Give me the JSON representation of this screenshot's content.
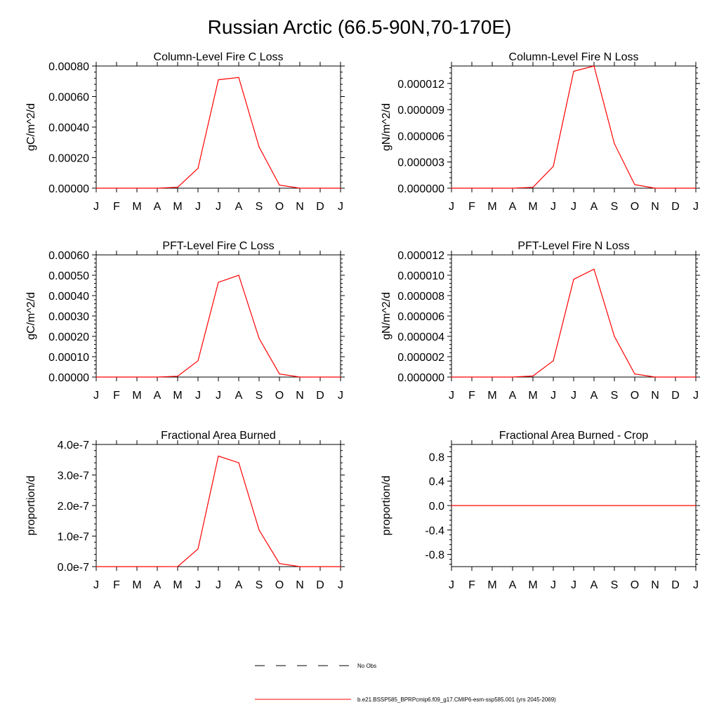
{
  "figure": {
    "title": "Russian Arctic (66.5-90N,70-170E)"
  },
  "months": [
    "J",
    "F",
    "M",
    "A",
    "M",
    "J",
    "J",
    "A",
    "S",
    "O",
    "N",
    "D",
    "J"
  ],
  "legend": [
    {
      "label": "No Obs",
      "style": "dashed",
      "color": "#000000"
    },
    {
      "label": "b.e21.BSSP585_BPRPcmip6.f09_g17.CMIP6-esm-ssp585.001 (yrs 2045-2069)",
      "style": "solid",
      "color": "#ff0000"
    }
  ],
  "chart_data": [
    {
      "type": "line",
      "title": "Column-Level Fire C Loss",
      "ylabel": "gC/m^2/d",
      "ylim": [
        0,
        0.0008
      ],
      "yticks": [
        "0.00000",
        "0.00020",
        "0.00040",
        "0.00060",
        "0.00080"
      ],
      "series": [
        {
          "color": "#ff0000",
          "values": [
            0,
            0,
            0,
            0,
            6e-06,
            0.00013,
            0.00071,
            0.000725,
            0.00027,
            2e-05,
            0,
            0,
            0
          ]
        }
      ]
    },
    {
      "type": "line",
      "title": "Column-Level Fire N Loss",
      "ylabel": "gN/m^2/d",
      "ylim": [
        0,
        1.4e-05
      ],
      "yticks": [
        "0.000000",
        "0.000003",
        "0.000006",
        "0.000009",
        "0.000012"
      ],
      "series": [
        {
          "color": "#ff0000",
          "values": [
            0,
            0,
            0,
            0,
            1e-07,
            2.5e-06,
            1.34e-05,
            1.4e-05,
            5.1e-06,
            4e-07,
            0,
            0,
            0
          ]
        }
      ]
    },
    {
      "type": "line",
      "title": "PFT-Level Fire C Loss",
      "ylabel": "gC/m^2/d",
      "ylim": [
        0,
        0.0006
      ],
      "yticks": [
        "0.00000",
        "0.00010",
        "0.00020",
        "0.00030",
        "0.00040",
        "0.00050",
        "0.00060"
      ],
      "series": [
        {
          "color": "#ff0000",
          "values": [
            0,
            0,
            0,
            0,
            4e-06,
            8e-05,
            0.000465,
            0.0005,
            0.00019,
            1.5e-05,
            0,
            0,
            0
          ]
        }
      ]
    },
    {
      "type": "line",
      "title": "PFT-Level Fire N Loss",
      "ylabel": "gN/m^2/d",
      "ylim": [
        0,
        1.2e-05
      ],
      "yticks": [
        "0.000000",
        "0.000002",
        "0.000004",
        "0.000006",
        "0.000008",
        "0.000010",
        "0.000012"
      ],
      "series": [
        {
          "color": "#ff0000",
          "values": [
            0,
            0,
            0,
            0,
            1e-07,
            1.6e-06,
            9.6e-06,
            1.06e-05,
            4e-06,
            3e-07,
            0,
            0,
            0
          ]
        }
      ]
    },
    {
      "type": "line",
      "title": "Fractional Area Burned",
      "ylabel": "proportion/d",
      "ylim": [
        0,
        4e-07
      ],
      "yticks": [
        "0.0e-7",
        "1.0e-7",
        "2.0e-7",
        "3.0e-7",
        "4.0e-7"
      ],
      "series": [
        {
          "color": "#ff0000",
          "values": [
            0,
            0,
            0,
            0,
            3e-10,
            5.8e-08,
            3.62e-07,
            3.4e-07,
            1.2e-07,
            1e-08,
            0,
            0,
            0
          ]
        }
      ]
    },
    {
      "type": "line",
      "title": "Fractional Area Burned - Crop",
      "ylabel": "proportion/d",
      "ylim": [
        -1,
        1
      ],
      "yticks": [
        "-0.8",
        "-0.4",
        "0.0",
        "0.4",
        "0.8"
      ],
      "series": [
        {
          "color": "#ff0000",
          "values": [
            0,
            0,
            0,
            0,
            0,
            0,
            0,
            0,
            0,
            0,
            0,
            0,
            0
          ]
        }
      ]
    }
  ]
}
